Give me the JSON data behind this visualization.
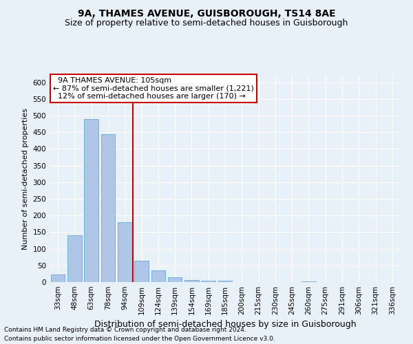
{
  "title1": "9A, THAMES AVENUE, GUISBOROUGH, TS14 8AE",
  "title2": "Size of property relative to semi-detached houses in Guisborough",
  "xlabel": "Distribution of semi-detached houses by size in Guisborough",
  "ylabel": "Number of semi-detached properties",
  "categories": [
    "33sqm",
    "48sqm",
    "63sqm",
    "78sqm",
    "94sqm",
    "109sqm",
    "124sqm",
    "139sqm",
    "154sqm",
    "169sqm",
    "185sqm",
    "200sqm",
    "215sqm",
    "230sqm",
    "245sqm",
    "260sqm",
    "275sqm",
    "291sqm",
    "306sqm",
    "321sqm",
    "336sqm"
  ],
  "values": [
    22,
    140,
    490,
    445,
    180,
    65,
    35,
    15,
    6,
    5,
    5,
    1,
    0,
    0,
    0,
    3,
    0,
    0,
    0,
    0,
    1
  ],
  "bar_color": "#aec6e8",
  "bar_edge_color": "#5a9fd4",
  "property_line_index": 5,
  "property_size": "105sqm",
  "pct_smaller": 87,
  "n_smaller": 1221,
  "pct_larger": 12,
  "n_larger": 170,
  "annotation_label": "9A THAMES AVENUE: 105sqm",
  "ylim": [
    0,
    620
  ],
  "yticks": [
    0,
    50,
    100,
    150,
    200,
    250,
    300,
    350,
    400,
    450,
    500,
    550,
    600
  ],
  "red_line_color": "#cc0000",
  "annotation_box_color": "#ffffff",
  "annotation_box_edge": "#cc0000",
  "footer1": "Contains HM Land Registry data © Crown copyright and database right 2024.",
  "footer2": "Contains public sector information licensed under the Open Government Licence v3.0.",
  "bg_color": "#e8f0f8",
  "grid_color": "#ffffff",
  "title1_fontsize": 10,
  "title2_fontsize": 9,
  "ylabel_fontsize": 8,
  "xlabel_fontsize": 9,
  "tick_fontsize": 7.5,
  "ann_fontsize": 8,
  "footer_fontsize": 6.5
}
